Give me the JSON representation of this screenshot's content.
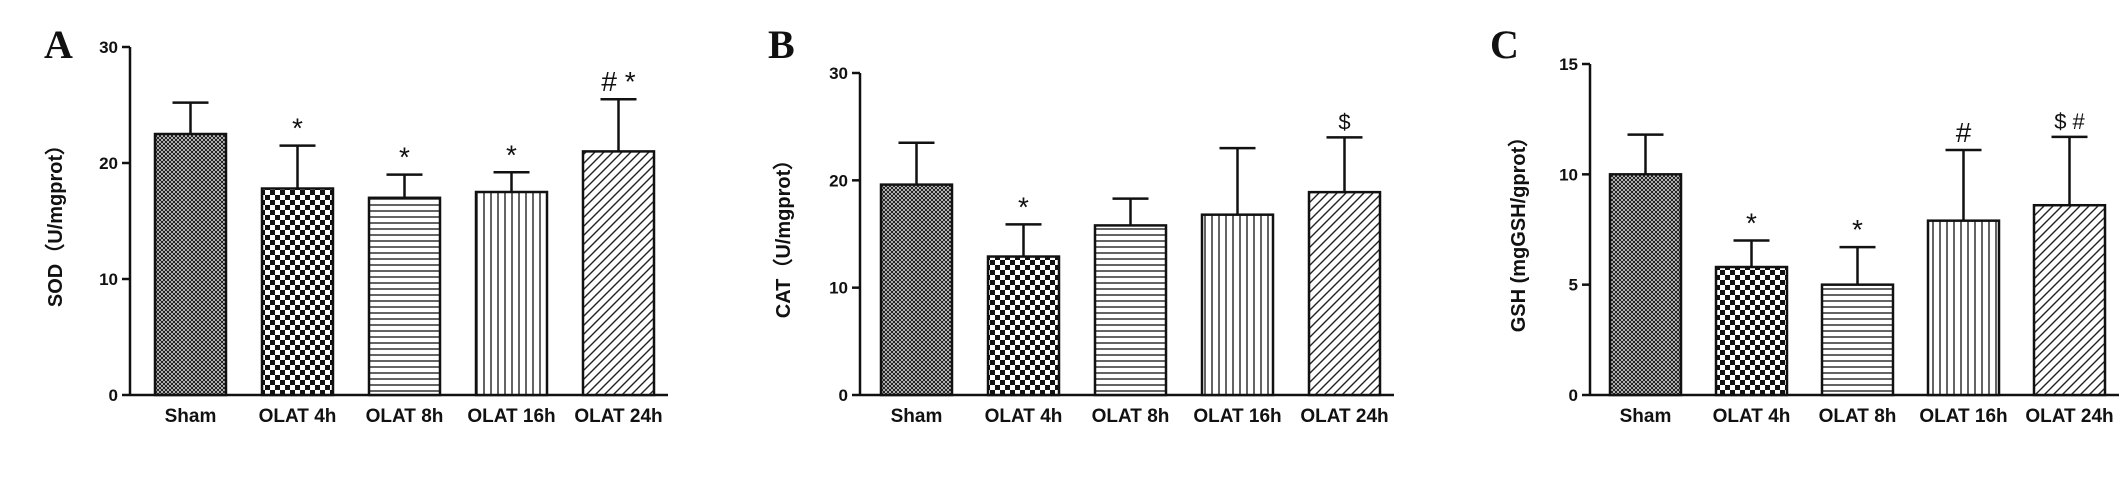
{
  "chart_data": [
    {
      "panel": "A",
      "type": "bar",
      "ylabel": "SOD（U/mgprot）",
      "ylim": [
        0,
        30
      ],
      "yticks": [
        0,
        10,
        20,
        30
      ],
      "categories": [
        "Sham",
        "OLAT 4h",
        "OLAT 8h",
        "OLAT 16h",
        "OLAT 24h"
      ],
      "values": [
        22.5,
        17.8,
        17.0,
        17.5,
        21.0
      ],
      "errors": [
        2.7,
        3.7,
        2.0,
        1.7,
        4.5
      ],
      "patterns": [
        "crosshatch",
        "checker",
        "horizontal",
        "vertical",
        "diagonal"
      ],
      "annotations": [
        "",
        "*",
        "*",
        "*",
        "# *"
      ]
    },
    {
      "panel": "B",
      "type": "bar",
      "ylabel": "CAT（U/mgprot）",
      "ylim": [
        0,
        30
      ],
      "yticks": [
        0,
        10,
        20,
        30
      ],
      "categories": [
        "Sham",
        "OLAT 4h",
        "OLAT 8h",
        "OLAT 16h",
        "OLAT 24h"
      ],
      "values": [
        19.6,
        12.9,
        15.8,
        16.8,
        18.9
      ],
      "errors": [
        3.9,
        3.0,
        2.5,
        6.2,
        5.1
      ],
      "patterns": [
        "crosshatch",
        "checker",
        "horizontal",
        "vertical",
        "diagonal"
      ],
      "annotations": [
        "",
        "*",
        "",
        "",
        "$"
      ]
    },
    {
      "panel": "C",
      "type": "bar",
      "ylabel": "GSH (mgGSH/gprot）",
      "ylim": [
        0,
        15
      ],
      "yticks": [
        0,
        5,
        10,
        15
      ],
      "categories": [
        "Sham",
        "OLAT 4h",
        "OLAT 8h",
        "OLAT 16h",
        "OLAT 24h"
      ],
      "values": [
        10.0,
        5.8,
        5.0,
        7.9,
        8.6
      ],
      "errors": [
        1.8,
        1.2,
        1.7,
        3.2,
        3.1
      ],
      "patterns": [
        "crosshatch",
        "checker",
        "horizontal",
        "vertical",
        "diagonal"
      ],
      "annotations": [
        "",
        "*",
        "*",
        "#",
        "$ #"
      ]
    }
  ]
}
